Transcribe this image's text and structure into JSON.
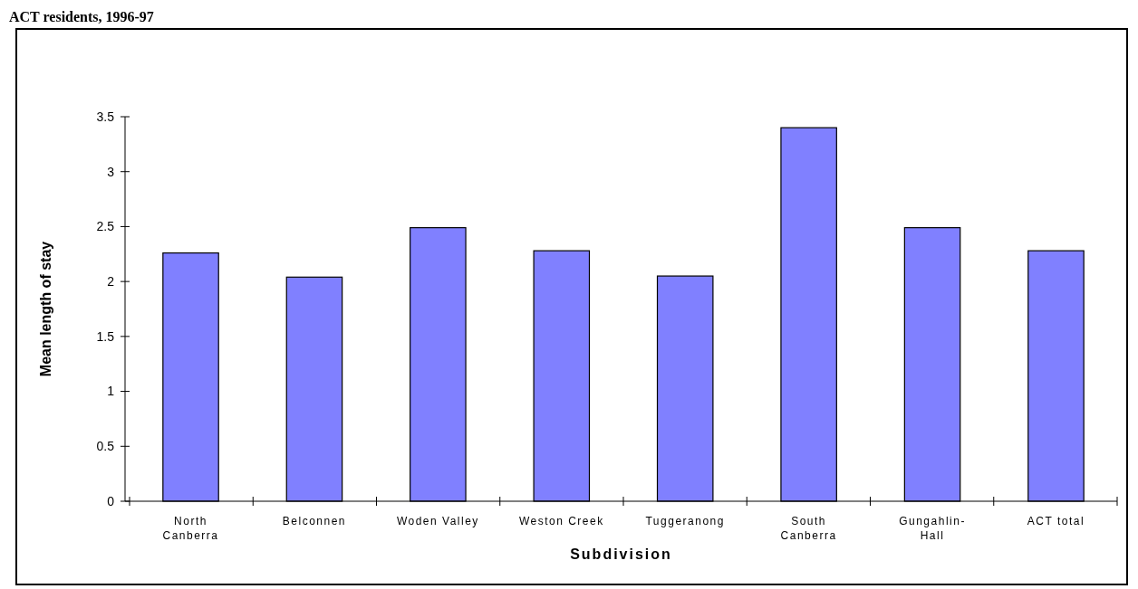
{
  "chart_data": {
    "type": "bar",
    "title": "ACT residents, 1996-97",
    "xlabel": "Subdivision",
    "ylabel": "Mean length of stay",
    "categories": [
      "North Canberra",
      "Belconnen",
      "Woden Valley",
      "Weston Creek",
      "Tuggeranong",
      "South Canberra",
      "Gungahlin-Hall",
      "ACT total"
    ],
    "values": [
      2.26,
      2.04,
      2.49,
      2.28,
      2.05,
      3.4,
      2.49,
      2.28
    ],
    "color": "#8080ff",
    "ylim": [
      0,
      3.5
    ],
    "yticks": [
      0,
      0.5,
      1,
      1.5,
      2,
      2.5,
      3,
      3.5
    ],
    "grid": false
  }
}
